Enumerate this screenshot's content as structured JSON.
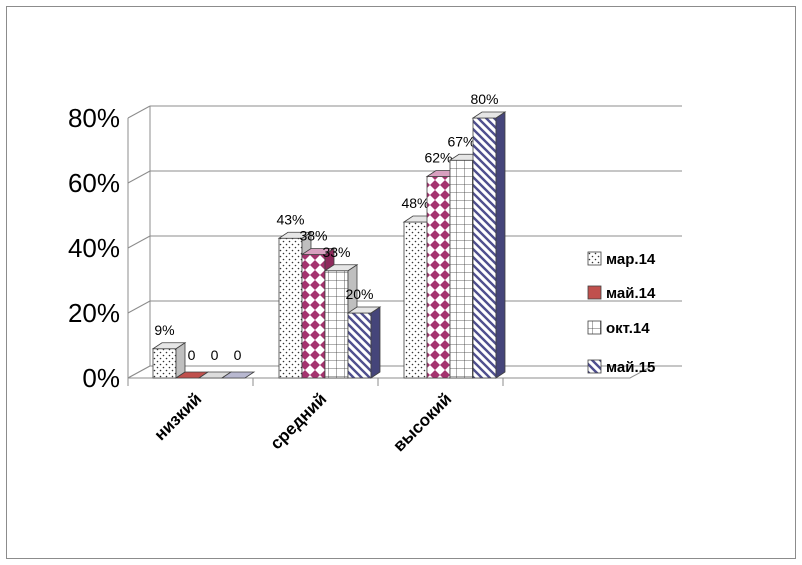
{
  "chart_data": {
    "type": "bar",
    "categories": [
      "низкий",
      "средний",
      "высокий"
    ],
    "series": [
      {
        "name": "мар.14",
        "values": [
          0.09,
          0.43,
          0.48
        ],
        "labels": [
          "9%",
          "43%",
          "48%"
        ],
        "pattern": "dots",
        "color": "#ffffff"
      },
      {
        "name": "май.14",
        "values": [
          0,
          0.38,
          0.62
        ],
        "labels": [
          "0",
          "38%",
          "62%"
        ],
        "pattern": "diamonds",
        "color": "#c0504d"
      },
      {
        "name": "окт.14",
        "values": [
          0,
          0.33,
          0.67
        ],
        "labels": [
          "0",
          "33%",
          "67%"
        ],
        "pattern": "grid",
        "color": "#ffffff"
      },
      {
        "name": "май.15",
        "values": [
          0,
          0.2,
          0.8
        ],
        "labels": [
          "0",
          "20%",
          "80%"
        ],
        "pattern": "diagonal",
        "color": "#4f4f8f"
      }
    ],
    "ylim": [
      0,
      0.8
    ],
    "yticks": [
      "0%",
      "20%",
      "40%",
      "60%",
      "80%"
    ],
    "grid": true,
    "legend": "right",
    "style": "3d-clustered-column"
  }
}
